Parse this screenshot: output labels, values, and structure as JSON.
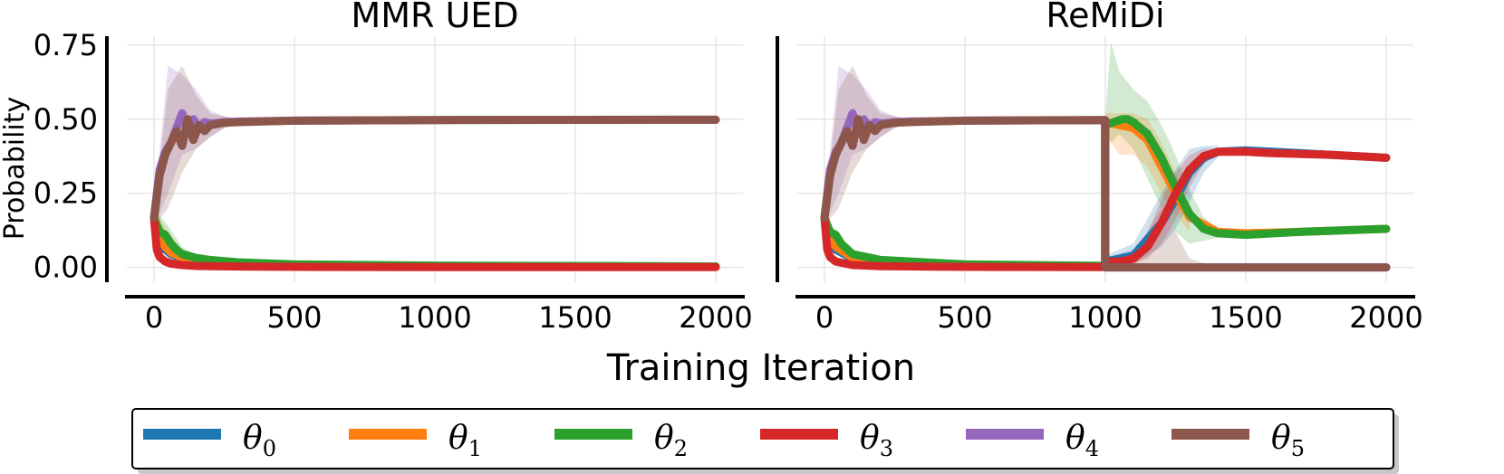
{
  "figure": {
    "xlabel": "Training Iteration",
    "ylabel": "Probability"
  },
  "legend": {
    "placement": "bottom",
    "entries": [
      {
        "base": "θ",
        "sub": "0",
        "color": "#1f77b4"
      },
      {
        "base": "θ",
        "sub": "1",
        "color": "#ff7f0e"
      },
      {
        "base": "θ",
        "sub": "2",
        "color": "#2ca02c"
      },
      {
        "base": "θ",
        "sub": "3",
        "color": "#d62728"
      },
      {
        "base": "θ",
        "sub": "4",
        "color": "#9467bd"
      },
      {
        "base": "θ",
        "sub": "5",
        "color": "#8c564b"
      }
    ]
  },
  "chart_data": [
    {
      "type": "line",
      "title": "MMR UED",
      "xlim": [
        0,
        2000
      ],
      "ylim": [
        -0.05,
        0.78
      ],
      "xticks": [
        0,
        500,
        1000,
        1500,
        2000
      ],
      "yticks": [
        0.0,
        0.25,
        0.5,
        0.75
      ],
      "ytick_labels": [
        "0.00",
        "0.25",
        "0.50",
        "0.75"
      ],
      "grid": true,
      "series": [
        {
          "name": "θ0",
          "color": "#1f77b4",
          "x": [
            0,
            20,
            40,
            60,
            100,
            150,
            200,
            300,
            500,
            1000,
            2000
          ],
          "y": [
            0.167,
            0.09,
            0.06,
            0.045,
            0.03,
            0.022,
            0.018,
            0.012,
            0.008,
            0.005,
            0.003
          ]
        },
        {
          "name": "θ1",
          "color": "#ff7f0e",
          "x": [
            0,
            20,
            40,
            60,
            100,
            150,
            200,
            300,
            500,
            1000,
            2000
          ],
          "y": [
            0.167,
            0.1,
            0.07,
            0.05,
            0.033,
            0.024,
            0.02,
            0.013,
            0.009,
            0.005,
            0.003
          ]
        },
        {
          "name": "θ2",
          "color": "#2ca02c",
          "x": [
            0,
            20,
            40,
            60,
            80,
            100,
            150,
            200,
            300,
            500,
            1000,
            2000
          ],
          "y": [
            0.167,
            0.12,
            0.11,
            0.08,
            0.06,
            0.045,
            0.032,
            0.025,
            0.017,
            0.01,
            0.006,
            0.003
          ]
        },
        {
          "name": "θ3",
          "color": "#d62728",
          "x": [
            0,
            10,
            20,
            40,
            60,
            100,
            150,
            200,
            300,
            500,
            1000,
            2000
          ],
          "y": [
            0.167,
            0.06,
            0.035,
            0.02,
            0.013,
            0.008,
            0.005,
            0.004,
            0.003,
            0.002,
            0.001,
            0.001
          ]
        },
        {
          "name": "θ4",
          "color": "#9467bd",
          "x": [
            0,
            20,
            40,
            60,
            80,
            100,
            120,
            140,
            160,
            180,
            200,
            250,
            300,
            500,
            1000,
            2000
          ],
          "y": [
            0.167,
            0.33,
            0.39,
            0.42,
            0.47,
            0.52,
            0.46,
            0.5,
            0.47,
            0.49,
            0.485,
            0.49,
            0.492,
            0.495,
            0.497,
            0.498
          ]
        },
        {
          "name": "θ5",
          "color": "#8c564b",
          "x": [
            0,
            20,
            40,
            60,
            80,
            100,
            120,
            140,
            160,
            180,
            200,
            250,
            300,
            500,
            1000,
            2000
          ],
          "y": [
            0.167,
            0.31,
            0.38,
            0.42,
            0.46,
            0.41,
            0.5,
            0.43,
            0.48,
            0.46,
            0.48,
            0.488,
            0.49,
            0.495,
            0.497,
            0.498
          ]
        }
      ],
      "uncertainty_bands": [
        {
          "series": "θ4",
          "x": [
            0,
            50,
            100,
            150,
            200,
            250,
            300,
            2000
          ],
          "upper": [
            0.2,
            0.68,
            0.65,
            0.6,
            0.53,
            0.51,
            0.5,
            0.5
          ],
          "lower": [
            0.14,
            0.25,
            0.38,
            0.4,
            0.44,
            0.47,
            0.485,
            0.495
          ]
        },
        {
          "series": "θ5",
          "x": [
            0,
            50,
            100,
            150,
            200,
            250,
            300,
            2000
          ],
          "upper": [
            0.2,
            0.6,
            0.68,
            0.58,
            0.52,
            0.51,
            0.5,
            0.5
          ],
          "lower": [
            0.14,
            0.2,
            0.32,
            0.4,
            0.44,
            0.47,
            0.485,
            0.495
          ]
        },
        {
          "series": "θ2",
          "x": [
            0,
            50,
            100,
            150,
            200
          ],
          "upper": [
            0.2,
            0.14,
            0.07,
            0.04,
            0.03
          ],
          "lower": [
            0.13,
            0.04,
            0.01,
            0.01,
            0.005
          ]
        },
        {
          "series": "θ1",
          "x": [
            0,
            50,
            100,
            150,
            200
          ],
          "upper": [
            0.2,
            0.12,
            0.06,
            0.035,
            0.025
          ],
          "lower": [
            0.13,
            0.03,
            0.01,
            0.008,
            0.005
          ]
        }
      ]
    },
    {
      "type": "line",
      "title": "ReMiDi",
      "xlim": [
        0,
        2000
      ],
      "ylim": [
        -0.05,
        0.78
      ],
      "xticks": [
        0,
        500,
        1000,
        1500,
        2000
      ],
      "yticks": [
        0.0,
        0.25,
        0.5,
        0.75
      ],
      "ytick_labels": [],
      "grid": true,
      "series": [
        {
          "name": "θ0",
          "color": "#1f77b4",
          "x": [
            0,
            20,
            40,
            100,
            200,
            500,
            999,
            1000,
            1100,
            1200,
            1250,
            1300,
            1350,
            1400,
            1500,
            1600,
            1800,
            2000
          ],
          "y": [
            0.167,
            0.09,
            0.06,
            0.03,
            0.018,
            0.008,
            0.005,
            0.02,
            0.04,
            0.15,
            0.23,
            0.32,
            0.37,
            0.39,
            0.395,
            0.39,
            0.38,
            0.37
          ]
        },
        {
          "name": "θ1",
          "color": "#ff7f0e",
          "x": [
            0,
            20,
            40,
            100,
            200,
            500,
            999,
            1000,
            1050,
            1100,
            1150,
            1200,
            1250,
            1300,
            1400,
            1500,
            1700,
            2000
          ],
          "y": [
            0.167,
            0.1,
            0.07,
            0.033,
            0.02,
            0.009,
            0.005,
            0.49,
            0.48,
            0.47,
            0.43,
            0.34,
            0.25,
            0.17,
            0.12,
            0.115,
            0.12,
            0.13
          ]
        },
        {
          "name": "θ2",
          "color": "#2ca02c",
          "x": [
            0,
            20,
            40,
            60,
            100,
            200,
            500,
            999,
            1000,
            1030,
            1060,
            1080,
            1100,
            1150,
            1200,
            1250,
            1300,
            1350,
            1400,
            1500,
            1700,
            2000
          ],
          "y": [
            0.167,
            0.12,
            0.11,
            0.08,
            0.045,
            0.025,
            0.01,
            0.005,
            0.48,
            0.49,
            0.5,
            0.5,
            0.49,
            0.45,
            0.37,
            0.27,
            0.18,
            0.13,
            0.115,
            0.11,
            0.12,
            0.13
          ]
        },
        {
          "name": "θ3",
          "color": "#d62728",
          "x": [
            0,
            10,
            20,
            40,
            100,
            200,
            500,
            999,
            1000,
            1050,
            1100,
            1150,
            1200,
            1250,
            1300,
            1350,
            1400,
            1500,
            1600,
            1800,
            2000
          ],
          "y": [
            0.167,
            0.06,
            0.035,
            0.02,
            0.008,
            0.004,
            0.002,
            0.001,
            0.02,
            0.02,
            0.03,
            0.07,
            0.15,
            0.25,
            0.33,
            0.375,
            0.39,
            0.39,
            0.385,
            0.38,
            0.37
          ]
        },
        {
          "name": "θ4",
          "color": "#9467bd",
          "x": [
            0,
            20,
            40,
            60,
            80,
            100,
            120,
            140,
            160,
            180,
            200,
            250,
            300,
            500,
            999,
            1000,
            2000
          ],
          "y": [
            0.167,
            0.33,
            0.39,
            0.42,
            0.47,
            0.52,
            0.46,
            0.5,
            0.47,
            0.49,
            0.485,
            0.49,
            0.492,
            0.495,
            0.497,
            0.0,
            0.0
          ]
        },
        {
          "name": "θ5",
          "color": "#8c564b",
          "x": [
            0,
            20,
            40,
            60,
            80,
            100,
            120,
            140,
            160,
            180,
            200,
            250,
            300,
            500,
            999,
            1000,
            2000
          ],
          "y": [
            0.167,
            0.31,
            0.38,
            0.42,
            0.46,
            0.41,
            0.5,
            0.43,
            0.48,
            0.46,
            0.48,
            0.488,
            0.49,
            0.495,
            0.497,
            0.0,
            0.0
          ]
        }
      ],
      "uncertainty_bands": [
        {
          "series": "θ4",
          "x": [
            0,
            50,
            100,
            150,
            200,
            250,
            300,
            999
          ],
          "upper": [
            0.2,
            0.68,
            0.65,
            0.6,
            0.53,
            0.51,
            0.5,
            0.5
          ],
          "lower": [
            0.14,
            0.25,
            0.38,
            0.4,
            0.44,
            0.47,
            0.485,
            0.495
          ]
        },
        {
          "series": "θ5",
          "x": [
            0,
            50,
            100,
            150,
            200,
            250,
            300,
            999
          ],
          "upper": [
            0.2,
            0.6,
            0.68,
            0.58,
            0.52,
            0.51,
            0.5,
            0.5
          ],
          "lower": [
            0.14,
            0.2,
            0.32,
            0.4,
            0.44,
            0.47,
            0.485,
            0.495
          ]
        },
        {
          "series": "θ2",
          "x": [
            1000,
            1020,
            1050,
            1100,
            1150,
            1200,
            1250,
            1300,
            1350,
            1400
          ],
          "upper": [
            0.5,
            0.76,
            0.66,
            0.6,
            0.56,
            0.48,
            0.38,
            0.26,
            0.17,
            0.13
          ],
          "lower": [
            0.45,
            0.42,
            0.45,
            0.4,
            0.3,
            0.2,
            0.12,
            0.08,
            0.09,
            0.1
          ]
        },
        {
          "series": "θ1",
          "x": [
            1000,
            1050,
            1100,
            1150,
            1200,
            1250,
            1300
          ],
          "upper": [
            0.52,
            0.52,
            0.52,
            0.5,
            0.42,
            0.32,
            0.2
          ],
          "lower": [
            0.45,
            0.38,
            0.38,
            0.34,
            0.25,
            0.18,
            0.12
          ]
        },
        {
          "series": "θ0",
          "x": [
            1000,
            1100,
            1200,
            1250,
            1300,
            1350,
            1400
          ],
          "upper": [
            0.04,
            0.08,
            0.25,
            0.33,
            0.4,
            0.41,
            0.41
          ],
          "lower": [
            0.0,
            0.01,
            0.07,
            0.13,
            0.22,
            0.32,
            0.37
          ]
        },
        {
          "series": "θ3",
          "x": [
            1000,
            1100,
            1150,
            1200,
            1250,
            1300,
            1350,
            1400
          ],
          "upper": [
            0.03,
            0.06,
            0.12,
            0.23,
            0.32,
            0.38,
            0.4,
            0.4
          ],
          "lower": [
            0.0,
            0.01,
            0.03,
            0.08,
            0.16,
            0.27,
            0.35,
            0.38
          ]
        },
        {
          "series": "θ5",
          "x": [
            1000,
            1050,
            1100,
            1150,
            1200,
            1250,
            1300,
            1400
          ],
          "upper": [
            0.0,
            0.0,
            0.04,
            0.12,
            0.2,
            0.12,
            0.03,
            0.0
          ],
          "lower": [
            0.0,
            0.0,
            0.0,
            0.0,
            0.0,
            0.0,
            0.0,
            0.0
          ]
        }
      ]
    }
  ]
}
